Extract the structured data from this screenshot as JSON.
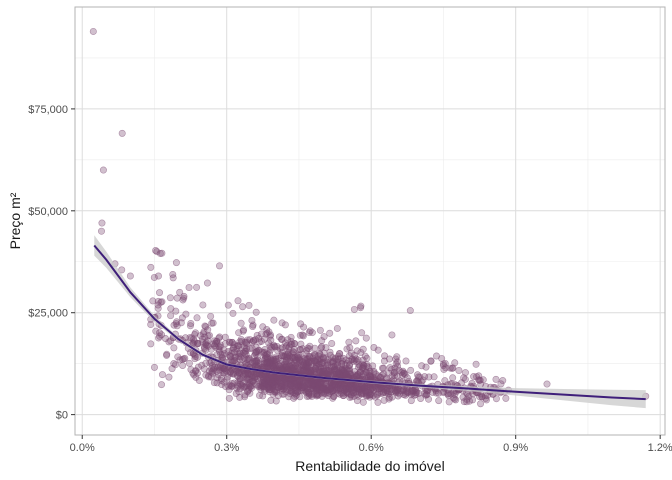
{
  "chart_data": {
    "type": "scatter",
    "xlabel": "Rentabilidade do imóvel",
    "ylabel": "Preço m²",
    "xlim": [
      -0.00015,
      0.0121
    ],
    "ylim": [
      -5000,
      100000
    ],
    "x_ticks": [
      0,
      0.003,
      0.006,
      0.009,
      0.012
    ],
    "x_tick_labels": [
      "0.0%",
      "0.3%",
      "0.6%",
      "0.9%",
      "1.2%"
    ],
    "y_ticks": [
      0,
      25000,
      50000,
      75000
    ],
    "y_tick_labels": [
      "$0",
      "$25,000",
      "$50,000",
      "$75,000"
    ],
    "grid": true,
    "legend": "none",
    "point_color": "#7b4a72",
    "point_alpha": 0.35,
    "smooth_color": "#3f1f7a",
    "ribbon_color": "#c9c9c9",
    "panel_border_color": "#b3b3b3",
    "grid_color": "#dcdcdc",
    "outliers": [
      {
        "x": 0.00023,
        "y": 94000
      },
      {
        "x": 0.00083,
        "y": 69000
      },
      {
        "x": 0.00044,
        "y": 60000
      },
      {
        "x": 0.00041,
        "y": 47000
      },
      {
        "x": 0.0004,
        "y": 45000
      },
      {
        "x": 0.00155,
        "y": 40000
      },
      {
        "x": 0.00068,
        "y": 37000
      },
      {
        "x": 0.00082,
        "y": 35500
      },
      {
        "x": 0.001,
        "y": 34000
      },
      {
        "x": 0.00285,
        "y": 36500
      },
      {
        "x": 0.00565,
        "y": 25800
      },
      {
        "x": 0.0117,
        "y": 4500
      },
      {
        "x": 0.00965,
        "y": 7500
      },
      {
        "x": 0.00885,
        "y": 6000
      }
    ],
    "cloud": {
      "n": 1900,
      "x_range": [
        0.0014,
        0.0088
      ],
      "density_x_center": 0.0046
    },
    "smooth": {
      "x": [
        0.00025,
        0.0005,
        0.00075,
        0.001,
        0.0015,
        0.002,
        0.0025,
        0.003,
        0.0035,
        0.004,
        0.005,
        0.006,
        0.007,
        0.008,
        0.009,
        0.01,
        0.011,
        0.0117
      ],
      "y": [
        41500,
        38000,
        34000,
        30000,
        23500,
        18500,
        14700,
        12300,
        11200,
        10300,
        9000,
        8000,
        7100,
        6400,
        5600,
        4900,
        4200,
        3800
      ],
      "se": [
        2500,
        2000,
        1600,
        1200,
        800,
        500,
        400,
        350,
        300,
        300,
        300,
        350,
        450,
        600,
        900,
        1400,
        1900,
        2200
      ]
    }
  }
}
